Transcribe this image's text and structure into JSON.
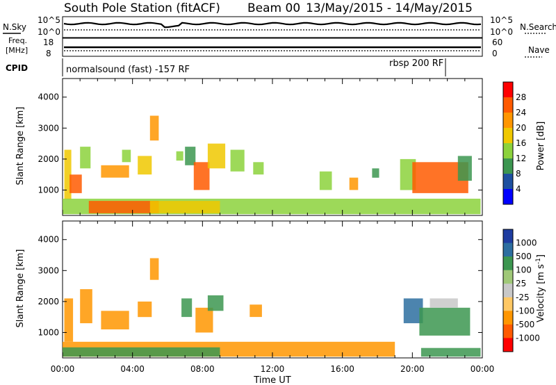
{
  "header": {
    "station": "South Pole Station (fitACF)",
    "beam": "Beam 00",
    "date_range": "13/May/2015 - 14/May/2015"
  },
  "top_panels": {
    "nsky_label": "N.Sky",
    "nsearch_label": "N.Search",
    "nsky_ticks": [
      "10^5",
      "10^0"
    ],
    "nsearch_ticks": [
      "10^5",
      "10^0"
    ],
    "freq_label_line1": "Freq.",
    "freq_label_line2": "[MHz]",
    "freq_ticks": [
      "18",
      "8"
    ],
    "nave_label": "Nave",
    "nave_ticks": [
      "60",
      "0"
    ],
    "cpid_label": "CPID",
    "cpid_segments": [
      {
        "start_hour": 0,
        "end_hour": 21.9,
        "label": "normalsound (fast) -157 RF"
      },
      {
        "start_hour": 21.9,
        "end_hour": 24,
        "label": "rbsp 200 RF"
      }
    ]
  },
  "power_colorbar": {
    "label": "Power [dB]",
    "ticks": [
      "28",
      "24",
      "20",
      "16",
      "12",
      "8",
      "4"
    ],
    "colors": [
      "#ff0000",
      "#ff5a00",
      "#ff9600",
      "#f0c800",
      "#8cd23c",
      "#3c9650",
      "#1e50a0",
      "#0000ff"
    ]
  },
  "velocity_colorbar": {
    "label": "Velocity [m s",
    "label_exp": "-1",
    "label_close": "]",
    "ticks": [
      "1000",
      "500",
      "100",
      "25",
      "-25",
      "-100",
      "-500",
      "-1000"
    ],
    "colors": [
      "#1e3ca0",
      "#2d6ea0",
      "#3c9650",
      "#a0c878",
      "#c8c8c8",
      "#ffc864",
      "#ff9600",
      "#ff5a00",
      "#ff0000"
    ]
  },
  "chart_data": {
    "type": "heatmap",
    "xlabel": "Time UT",
    "x_ticks": [
      "00:00",
      "04:00",
      "08:00",
      "12:00",
      "16:00",
      "20:00",
      "00:00"
    ],
    "xlim_hours": [
      0,
      24
    ],
    "ylabel": "Slant Range [km]",
    "y_ticks": [
      1000,
      2000,
      3000,
      4000
    ],
    "ylim_km": [
      180,
      4600
    ],
    "panels": [
      {
        "name": "power",
        "blobs": [
          {
            "t0": 0.1,
            "t1": 0.5,
            "r0": 700,
            "r1": 2300,
            "value": 18
          },
          {
            "t0": 0.4,
            "t1": 1.1,
            "r0": 900,
            "r1": 1500,
            "value": 26
          },
          {
            "t0": 1.0,
            "t1": 1.6,
            "r0": 1700,
            "r1": 2400,
            "value": 12
          },
          {
            "t0": 2.2,
            "t1": 3.8,
            "r0": 1400,
            "r1": 1800,
            "value": 20
          },
          {
            "t0": 3.4,
            "t1": 3.9,
            "r0": 1900,
            "r1": 2300,
            "value": 14
          },
          {
            "t0": 4.3,
            "t1": 5.1,
            "r0": 1500,
            "r1": 2100,
            "value": 16
          },
          {
            "t0": 5.0,
            "t1": 5.5,
            "r0": 2600,
            "r1": 3400,
            "value": 22
          },
          {
            "t0": 6.5,
            "t1": 6.9,
            "r0": 1950,
            "r1": 2250,
            "value": 12
          },
          {
            "t0": 7.0,
            "t1": 7.6,
            "r0": 1800,
            "r1": 2400,
            "value": 8
          },
          {
            "t0": 7.5,
            "t1": 8.4,
            "r0": 1000,
            "r1": 1900,
            "value": 26
          },
          {
            "t0": 8.3,
            "t1": 9.3,
            "r0": 1700,
            "r1": 2500,
            "value": 16
          },
          {
            "t0": 9.6,
            "t1": 10.4,
            "r0": 1600,
            "r1": 2300,
            "value": 12
          },
          {
            "t0": 10.9,
            "t1": 11.5,
            "r0": 1500,
            "r1": 1900,
            "value": 14
          },
          {
            "t0": 14.7,
            "t1": 15.4,
            "r0": 1000,
            "r1": 1600,
            "value": 12
          },
          {
            "t0": 16.4,
            "t1": 16.9,
            "r0": 1000,
            "r1": 1400,
            "value": 20
          },
          {
            "t0": 17.7,
            "t1": 18.1,
            "r0": 1400,
            "r1": 1700,
            "value": 8
          },
          {
            "t0": 19.3,
            "t1": 20.2,
            "r0": 1000,
            "r1": 2000,
            "value": 12
          },
          {
            "t0": 20.0,
            "t1": 23.2,
            "r0": 900,
            "r1": 1900,
            "value": 26
          },
          {
            "t0": 22.6,
            "t1": 23.4,
            "r0": 1300,
            "r1": 2100,
            "value": 8
          },
          {
            "t0": 0.0,
            "t1": 23.9,
            "r0": 220,
            "r1": 720,
            "value": 14
          },
          {
            "t0": 1.5,
            "t1": 5.5,
            "r0": 250,
            "r1": 650,
            "value": 26
          },
          {
            "t0": 5.0,
            "t1": 9.0,
            "r0": 250,
            "r1": 650,
            "value": 18
          }
        ]
      },
      {
        "name": "velocity",
        "blobs": [
          {
            "t0": 0.1,
            "t1": 0.6,
            "r0": 700,
            "r1": 2100,
            "value": -300
          },
          {
            "t0": 1.0,
            "t1": 1.7,
            "r0": 1300,
            "r1": 2400,
            "value": -300
          },
          {
            "t0": 2.2,
            "t1": 3.8,
            "r0": 1100,
            "r1": 1700,
            "value": -300
          },
          {
            "t0": 4.3,
            "t1": 5.1,
            "r0": 1500,
            "r1": 2000,
            "value": -300
          },
          {
            "t0": 5.0,
            "t1": 5.5,
            "r0": 2700,
            "r1": 3400,
            "value": -300
          },
          {
            "t0": 6.8,
            "t1": 7.4,
            "r0": 1500,
            "r1": 2100,
            "value": 100
          },
          {
            "t0": 7.6,
            "t1": 8.6,
            "r0": 1000,
            "r1": 1800,
            "value": -300
          },
          {
            "t0": 8.3,
            "t1": 9.2,
            "r0": 1700,
            "r1": 2200,
            "value": 100
          },
          {
            "t0": 10.7,
            "t1": 11.4,
            "r0": 1500,
            "r1": 1900,
            "value": -300
          },
          {
            "t0": 19.5,
            "t1": 20.6,
            "r0": 1300,
            "r1": 2100,
            "value": 400
          },
          {
            "t0": 20.4,
            "t1": 23.3,
            "r0": 900,
            "r1": 1800,
            "value": 200
          },
          {
            "t0": 21.0,
            "t1": 22.6,
            "r0": 1800,
            "r1": 2100,
            "value": 0
          },
          {
            "t0": 0.0,
            "t1": 19.0,
            "r0": 220,
            "r1": 700,
            "value": -300
          },
          {
            "t0": 0.0,
            "t1": 9.0,
            "r0": 220,
            "r1": 520,
            "value": 100
          },
          {
            "t0": 20.5,
            "t1": 23.9,
            "r0": 220,
            "r1": 500,
            "value": 100
          }
        ]
      }
    ]
  }
}
